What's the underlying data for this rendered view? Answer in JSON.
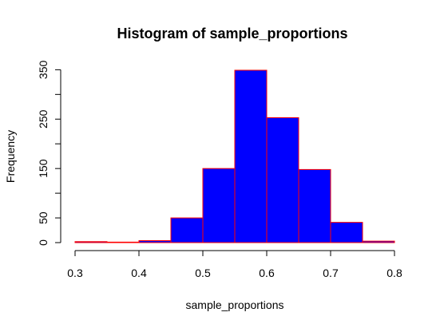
{
  "chart_data": {
    "type": "bar",
    "title": "Histogram of sample_proportions",
    "xlabel": "sample_proportions",
    "ylabel": "Frequency",
    "bins": [
      {
        "start": 0.3,
        "end": 0.35,
        "count": 2
      },
      {
        "start": 0.35,
        "end": 0.4,
        "count": 1
      },
      {
        "start": 0.4,
        "end": 0.45,
        "count": 4
      },
      {
        "start": 0.45,
        "end": 0.5,
        "count": 50
      },
      {
        "start": 0.5,
        "end": 0.55,
        "count": 150
      },
      {
        "start": 0.55,
        "end": 0.6,
        "count": 349
      },
      {
        "start": 0.6,
        "end": 0.65,
        "count": 253
      },
      {
        "start": 0.65,
        "end": 0.7,
        "count": 148
      },
      {
        "start": 0.7,
        "end": 0.75,
        "count": 41
      },
      {
        "start": 0.75,
        "end": 0.8,
        "count": 3
      }
    ],
    "xlim": [
      0.3,
      0.8
    ],
    "ylim": [
      0,
      349
    ],
    "xticks": [
      0.3,
      0.4,
      0.5,
      0.6,
      0.7,
      0.8
    ],
    "xtick_labels": [
      "0.3",
      "0.4",
      "0.5",
      "0.6",
      "0.7",
      "0.8"
    ],
    "yticks": [
      0,
      50,
      100,
      150,
      200,
      250,
      300,
      350
    ],
    "ytick_labels": [
      "0",
      "50",
      "",
      "150",
      "",
      "250",
      "",
      "350"
    ],
    "bar_fill": "#0000ff",
    "bar_border": "#ff0000",
    "grid": false,
    "legend": "none"
  }
}
